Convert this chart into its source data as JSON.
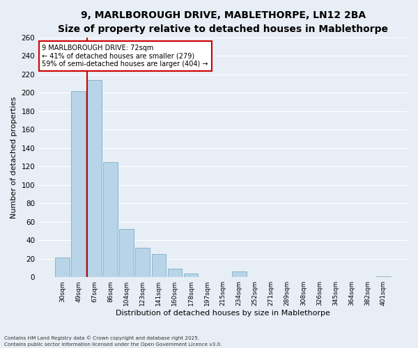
{
  "title_line1": "9, MARLBOROUGH DRIVE, MABLETHORPE, LN12 2BA",
  "title_line2": "Size of property relative to detached houses in Mablethorpe",
  "xlabel": "Distribution of detached houses by size in Mablethorpe",
  "ylabel": "Number of detached properties",
  "bin_labels": [
    "30sqm",
    "49sqm",
    "67sqm",
    "86sqm",
    "104sqm",
    "123sqm",
    "141sqm",
    "160sqm",
    "178sqm",
    "197sqm",
    "215sqm",
    "234sqm",
    "252sqm",
    "271sqm",
    "289sqm",
    "308sqm",
    "326sqm",
    "345sqm",
    "364sqm",
    "382sqm",
    "401sqm"
  ],
  "bar_values": [
    21,
    202,
    214,
    125,
    52,
    32,
    25,
    9,
    4,
    0,
    0,
    6,
    0,
    0,
    0,
    0,
    0,
    0,
    0,
    0,
    1
  ],
  "bar_color": "#b8d4e8",
  "bar_edgecolor": "#7aafc8",
  "vline_x_index": 2,
  "vline_color": "#cc0000",
  "ylim": [
    0,
    260
  ],
  "yticks": [
    0,
    20,
    40,
    60,
    80,
    100,
    120,
    140,
    160,
    180,
    200,
    220,
    240,
    260
  ],
  "annotation_title": "9 MARLBOROUGH DRIVE: 72sqm",
  "annotation_line1": "← 41% of detached houses are smaller (279)",
  "annotation_line2": "59% of semi-detached houses are larger (404) →",
  "annotation_box_color": "#ffffff",
  "annotation_box_edgecolor": "#cc0000",
  "footnote1": "Contains HM Land Registry data © Crown copyright and database right 2025.",
  "footnote2": "Contains public sector information licensed under the Open Government Licence v3.0.",
  "bg_color": "#e8eef5",
  "plot_bg_color": "#e8eef5",
  "grid_color": "#ffffff",
  "title_fontsize": 10,
  "subtitle_fontsize": 8.5
}
